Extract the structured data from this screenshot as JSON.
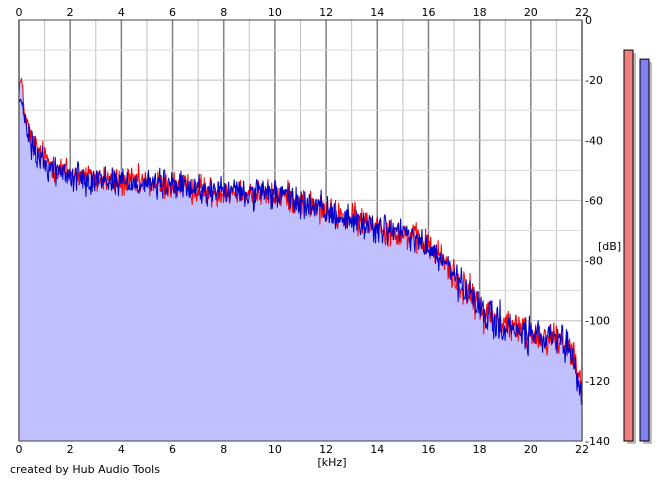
{
  "credit": "created by Hub Audio Tools",
  "colors": {
    "background": "#ffffff",
    "plot_background": "#ffffff",
    "fill": "#c0c0ff",
    "grid_minor": "#c0c0c0",
    "grid_major": "#808080",
    "channel_1": "#ff0000",
    "channel_2": "#0000cc",
    "meter_1": "#f08080",
    "meter_2": "#8080f0",
    "meter_shadow": "#bcbcbc"
  },
  "chart_data": {
    "type": "line",
    "title": "",
    "xlabel": "[kHz]",
    "ylabel": "[dB]",
    "xlim": [
      0,
      22
    ],
    "ylim": [
      -140,
      0
    ],
    "x_ticks": [
      "0",
      "2",
      "4",
      "6",
      "8",
      "10",
      "12",
      "14",
      "16",
      "18",
      "20",
      "22"
    ],
    "y_ticks": [
      "0",
      "-20",
      "-40",
      "-60",
      "-80",
      "-100",
      "-120",
      "-140"
    ],
    "grid": true,
    "legend": "none",
    "series": [
      {
        "color": "#ff0000",
        "x": [
          0,
          0.1,
          0.2,
          0.4,
          0.6,
          1,
          1.5,
          2,
          2.5,
          3,
          3.5,
          4,
          4.5,
          5,
          5.5,
          6,
          6.5,
          7,
          7.5,
          8,
          8.5,
          9,
          9.5,
          10,
          10.5,
          11,
          11.5,
          12,
          12.5,
          13,
          13.5,
          14,
          14.5,
          15,
          15.5,
          16,
          16.5,
          17,
          17.5,
          18,
          18.5,
          19,
          19.5,
          20,
          20.5,
          21,
          21.5,
          22
        ],
        "values": [
          -22,
          -20,
          -30,
          -38,
          -42,
          -46,
          -49,
          -51,
          -52,
          -53,
          -53,
          -54,
          -54,
          -54,
          -55,
          -55,
          -56,
          -56,
          -57,
          -57,
          -57,
          -57,
          -58,
          -58,
          -59,
          -60,
          -62,
          -64,
          -65,
          -66,
          -67,
          -68,
          -70,
          -71,
          -73,
          -75,
          -79,
          -85,
          -90,
          -96,
          -99,
          -101,
          -103,
          -104,
          -105,
          -106,
          -108,
          -118
        ]
      },
      {
        "color": "#0000cc",
        "x": [
          0,
          0.1,
          0.2,
          0.4,
          0.6,
          1,
          1.5,
          2,
          2.5,
          3,
          3.5,
          4,
          4.5,
          5,
          5.5,
          6,
          6.5,
          7,
          7.5,
          8,
          8.5,
          9,
          9.5,
          10,
          10.5,
          11,
          11.5,
          12,
          12.5,
          13,
          13.5,
          14,
          14.5,
          15,
          15.5,
          16,
          16.5,
          17,
          17.5,
          18,
          18.5,
          19,
          19.5,
          20,
          20.5,
          21,
          21.5,
          22
        ],
        "values": [
          -26,
          -28,
          -32,
          -40,
          -44,
          -48,
          -50,
          -52,
          -52,
          -53,
          -53,
          -54,
          -54,
          -54,
          -55,
          -55,
          -56,
          -56,
          -57,
          -57,
          -57,
          -58,
          -58,
          -58,
          -59,
          -61,
          -62,
          -64,
          -65,
          -67,
          -68,
          -69,
          -70,
          -71,
          -73,
          -76,
          -80,
          -85,
          -91,
          -96,
          -100,
          -102,
          -104,
          -105,
          -106,
          -107,
          -110,
          -124
        ]
      }
    ],
    "meters": [
      {
        "color": "#f08080",
        "top_db": -10
      },
      {
        "color": "#8080f0",
        "top_db": -13
      }
    ]
  }
}
